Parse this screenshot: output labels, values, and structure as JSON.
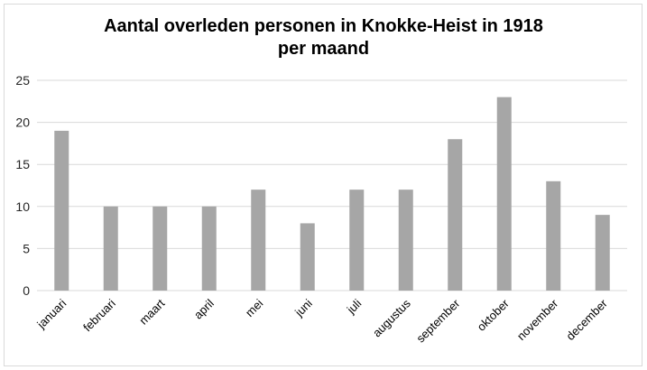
{
  "chart_data": {
    "type": "bar",
    "title_line1": "Aantal overleden personen in Knokke-Heist in 1918",
    "title_line2": "per maand",
    "categories": [
      "januari",
      "februari",
      "maart",
      "april",
      "mei",
      "juni",
      "juli",
      "augustus",
      "september",
      "oktober",
      "november",
      "december"
    ],
    "values": [
      19,
      10,
      10,
      10,
      12,
      8,
      12,
      12,
      18,
      23,
      13,
      9
    ],
    "ylim": [
      0,
      25
    ],
    "yticks": [
      "0",
      "5",
      "10",
      "15",
      "20",
      "25"
    ],
    "bar_color": "#a6a6a6",
    "grid_color": "#d9d9d9",
    "xlabel": "",
    "ylabel": "",
    "grid": true
  }
}
